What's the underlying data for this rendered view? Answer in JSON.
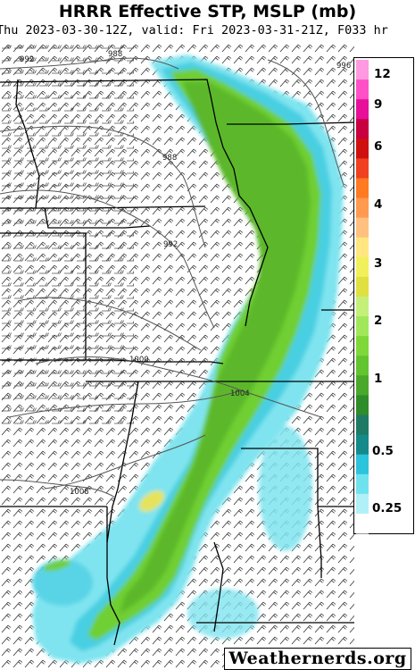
{
  "header": {
    "title": "HRRR Effective STP, MSLP (mb)",
    "subtitle": "Thu 2023-03-30-12Z, valid: Fri 2023-03-31-21Z, F033 hr"
  },
  "legend": {
    "ticks": [
      "12",
      "9",
      "6",
      "4",
      "3",
      "2",
      "1",
      "0.5",
      "0.25"
    ],
    "colors": [
      "#ffffff",
      "#b0f0f6",
      "#6ee3ee",
      "#2cc3dc",
      "#148a8a",
      "#1e7a64",
      "#2f8c2a",
      "#4aa82a",
      "#62c42e",
      "#7fd83a",
      "#a0e85a",
      "#c4f07a",
      "#e0e040",
      "#f2f05a",
      "#ffe680",
      "#ffc080",
      "#ff9a50",
      "#ff7a20",
      "#f04020",
      "#d01010",
      "#c80040",
      "#e8109a",
      "#ff50c8",
      "#ff99e0"
    ]
  },
  "isobars": [
    "992",
    "988",
    "988",
    "992",
    "996",
    "1000",
    "1004",
    "1008"
  ],
  "watermark": "Weathernerds.org"
}
